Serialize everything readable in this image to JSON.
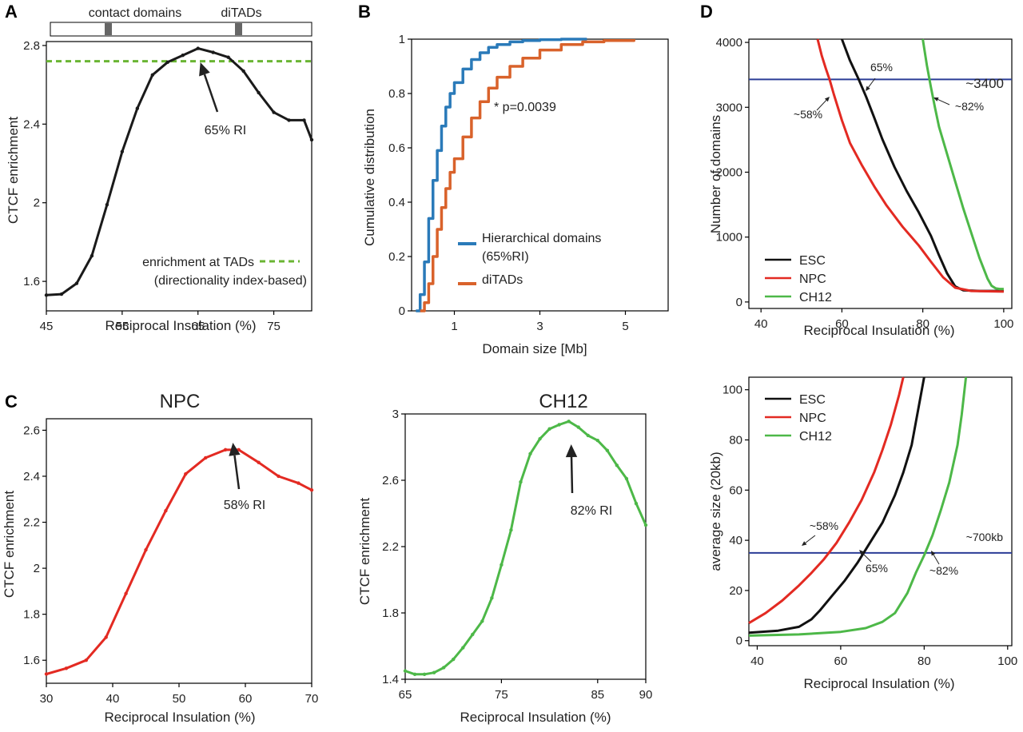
{
  "panel_labels": {
    "A": "A",
    "B": "B",
    "C": "C",
    "D": "D"
  },
  "chart_data": [
    {
      "id": "A",
      "type": "line",
      "xlabel": "Reciprocal Insulation (%)",
      "ylabel": "CTCF enrichment",
      "xlim": [
        45,
        80
      ],
      "ylim": [
        1.45,
        2.82
      ],
      "xticks": [
        45,
        55,
        65,
        75
      ],
      "yticks": [
        1.6,
        2,
        2.4,
        2.8
      ],
      "series": [
        {
          "color": "#1a1a1a",
          "x": [
            45,
            47,
            49,
            51,
            53,
            55,
            57,
            59,
            61,
            63,
            65,
            67,
            69,
            71,
            73,
            75,
            77,
            79,
            80
          ],
          "y": [
            1.53,
            1.535,
            1.59,
            1.73,
            1.99,
            2.26,
            2.48,
            2.65,
            2.715,
            2.75,
            2.785,
            2.765,
            2.74,
            2.67,
            2.56,
            2.46,
            2.42,
            2.42,
            2.32
          ]
        }
      ],
      "reference_line": {
        "y": 2.72,
        "color": "#6ab533",
        "style": "dashed"
      },
      "legend": [
        "enrichment at TADs",
        "(directionality index-based)"
      ],
      "annotation": "65% RI",
      "annotation_x": 65,
      "track": {
        "labels": [
          "contact domains",
          "diTADs"
        ],
        "marks_x": [
          53,
          70
        ]
      }
    },
    {
      "id": "B",
      "type": "line",
      "xlabel": "Domain size [Mb]",
      "ylabel": "Cumulative distribution",
      "xlim": [
        0,
        6
      ],
      "ylim": [
        0,
        1
      ],
      "xticks": [
        1,
        3,
        5
      ],
      "yticks": [
        0,
        0.2,
        0.4,
        0.6,
        0.8,
        1
      ],
      "series": [
        {
          "name": "Hierarchical domains",
          "name_line2": "(65%RI)",
          "color": "#2a7ab9",
          "x": [
            0.1,
            0.2,
            0.3,
            0.4,
            0.5,
            0.6,
            0.7,
            0.8,
            0.9,
            1.0,
            1.2,
            1.4,
            1.6,
            1.8,
            2.0,
            2.3,
            2.6,
            3.0,
            3.5,
            4.1
          ],
          "y": [
            0,
            0.06,
            0.18,
            0.34,
            0.48,
            0.59,
            0.68,
            0.75,
            0.8,
            0.84,
            0.89,
            0.925,
            0.95,
            0.97,
            0.98,
            0.99,
            0.995,
            0.998,
            1.0,
            1.0
          ]
        },
        {
          "name": "diTADs",
          "color": "#d9622b",
          "x": [
            0.2,
            0.3,
            0.4,
            0.5,
            0.6,
            0.7,
            0.8,
            0.9,
            1.0,
            1.2,
            1.4,
            1.6,
            1.8,
            2.0,
            2.3,
            2.6,
            3.0,
            3.5,
            4.0,
            4.5,
            5.2
          ],
          "y": [
            0,
            0.03,
            0.1,
            0.2,
            0.3,
            0.38,
            0.45,
            0.51,
            0.56,
            0.64,
            0.71,
            0.77,
            0.82,
            0.86,
            0.9,
            0.93,
            0.96,
            0.98,
            0.99,
            0.995,
            1.0
          ]
        }
      ],
      "annotation": "* p=0.0039"
    },
    {
      "id": "C-NPC",
      "type": "line",
      "title": "NPC",
      "xlabel": "Reciprocal Insulation (%)",
      "ylabel": "CTCF enrichment",
      "xlim": [
        30,
        70
      ],
      "ylim": [
        1.5,
        2.65
      ],
      "xticks": [
        30,
        40,
        50,
        60,
        70
      ],
      "yticks": [
        1.6,
        1.8,
        2,
        2.2,
        2.4,
        2.6
      ],
      "series": [
        {
          "color": "#e32a22",
          "x": [
            30,
            33,
            36,
            39,
            42,
            45,
            48,
            51,
            54,
            57,
            59,
            62,
            65,
            68,
            70
          ],
          "y": [
            1.54,
            1.565,
            1.6,
            1.7,
            1.89,
            2.08,
            2.25,
            2.41,
            2.48,
            2.515,
            2.515,
            2.46,
            2.4,
            2.37,
            2.34
          ]
        }
      ],
      "annotation": "58% RI",
      "annotation_x": 58
    },
    {
      "id": "C-CH12",
      "type": "line",
      "title": "CH12",
      "xlabel": "Reciprocal Insulation (%)",
      "ylabel": "CTCF enrichment",
      "xlim": [
        65,
        90
      ],
      "ylim": [
        1.4,
        3.0
      ],
      "xticks": [
        65,
        75,
        85,
        90
      ],
      "yticks": [
        1.4,
        1.8,
        2.2,
        2.6,
        3
      ],
      "series": [
        {
          "color": "#4db848",
          "x": [
            65,
            66,
            67,
            68,
            69,
            70,
            71,
            72,
            73,
            74,
            75,
            76,
            77,
            78,
            79,
            80,
            81,
            82,
            83,
            84,
            85,
            86,
            87,
            88,
            89,
            90
          ],
          "y": [
            1.45,
            1.43,
            1.43,
            1.44,
            1.47,
            1.52,
            1.59,
            1.67,
            1.75,
            1.89,
            2.09,
            2.3,
            2.59,
            2.76,
            2.85,
            2.91,
            2.935,
            2.955,
            2.92,
            2.87,
            2.84,
            2.78,
            2.69,
            2.61,
            2.46,
            2.33
          ]
        }
      ],
      "annotation": "82% RI",
      "annotation_x": 82
    },
    {
      "id": "D-top",
      "type": "line",
      "xlabel": "Reciprocal Insulation (%)",
      "ylabel": "Number of domains",
      "xlim": [
        37,
        102
      ],
      "ylim": [
        -100,
        4050
      ],
      "xticks": [
        40,
        60,
        80,
        100
      ],
      "yticks": [
        0,
        1000,
        2000,
        3000,
        4000
      ],
      "series": [
        {
          "name": "ESC",
          "color": "#111111",
          "x": [
            60,
            62,
            64,
            66,
            68,
            70,
            73,
            76,
            79,
            82,
            84,
            86,
            88,
            90,
            94,
            100
          ],
          "y": [
            4050,
            3720,
            3450,
            3160,
            2840,
            2510,
            2080,
            1710,
            1380,
            1020,
            720,
            440,
            240,
            180,
            170,
            170
          ]
        },
        {
          "name": "NPC",
          "color": "#e32a22",
          "x": [
            54,
            55,
            56,
            57,
            58,
            60,
            62,
            65,
            68,
            71,
            75,
            79,
            82,
            85,
            88,
            92,
            100
          ],
          "y": [
            4050,
            3800,
            3600,
            3420,
            3200,
            2800,
            2450,
            2100,
            1780,
            1490,
            1160,
            870,
            620,
            380,
            220,
            170,
            160
          ]
        },
        {
          "name": "CH12",
          "color": "#4db848",
          "x": [
            80,
            81,
            82,
            83,
            84,
            86,
            88,
            90,
            92,
            94,
            96,
            97,
            98,
            99,
            100
          ],
          "y": [
            4050,
            3650,
            3310,
            3000,
            2700,
            2280,
            1860,
            1440,
            1060,
            680,
            360,
            250,
            210,
            200,
            200
          ]
        }
      ],
      "reference_line": {
        "y": 3430,
        "color": "#2b3d96",
        "label": "~3400"
      },
      "annotations": [
        "65%",
        "~58%",
        "~82%"
      ],
      "legend": [
        "ESC",
        "NPC",
        "CH12"
      ]
    },
    {
      "id": "D-bottom",
      "type": "line",
      "xlabel": "Reciprocal Insulation (%)",
      "ylabel": "average size (20kb)",
      "xlim": [
        38,
        101
      ],
      "ylim": [
        -2,
        105
      ],
      "xticks": [
        40,
        60,
        80,
        100
      ],
      "yticks": [
        0,
        20,
        40,
        60,
        80,
        100
      ],
      "series": [
        {
          "name": "ESC",
          "color": "#111111",
          "x": [
            38,
            45,
            50,
            53,
            55,
            58,
            61,
            64,
            67,
            70,
            73,
            75,
            77,
            78,
            79,
            80
          ],
          "y": [
            3.2,
            4,
            5.5,
            8.5,
            12,
            18,
            24,
            31,
            39,
            47,
            58,
            67,
            78,
            87,
            96,
            105
          ]
        },
        {
          "name": "NPC",
          "color": "#e32a22",
          "x": [
            38,
            42,
            46,
            50,
            53,
            56,
            59,
            62,
            65,
            68,
            70,
            72,
            73,
            74,
            75
          ],
          "y": [
            7,
            11,
            16,
            22,
            27,
            32.5,
            39,
            47,
            56,
            67,
            76,
            86,
            92,
            98,
            105
          ]
        },
        {
          "name": "CH12",
          "color": "#4db848",
          "x": [
            38,
            50,
            60,
            66,
            70,
            73,
            76,
            78,
            80,
            82,
            84,
            86,
            88,
            89,
            90
          ],
          "y": [
            2,
            2.5,
            3.5,
            5,
            7.5,
            11,
            19,
            27,
            34,
            42,
            52,
            63,
            78,
            90,
            105
          ]
        }
      ],
      "reference_line": {
        "y": 35,
        "color": "#2b3d96",
        "label": "~700kb"
      },
      "annotations": [
        "~58%",
        "65%",
        "~82%"
      ],
      "legend": [
        "ESC",
        "NPC",
        "CH12"
      ]
    }
  ]
}
